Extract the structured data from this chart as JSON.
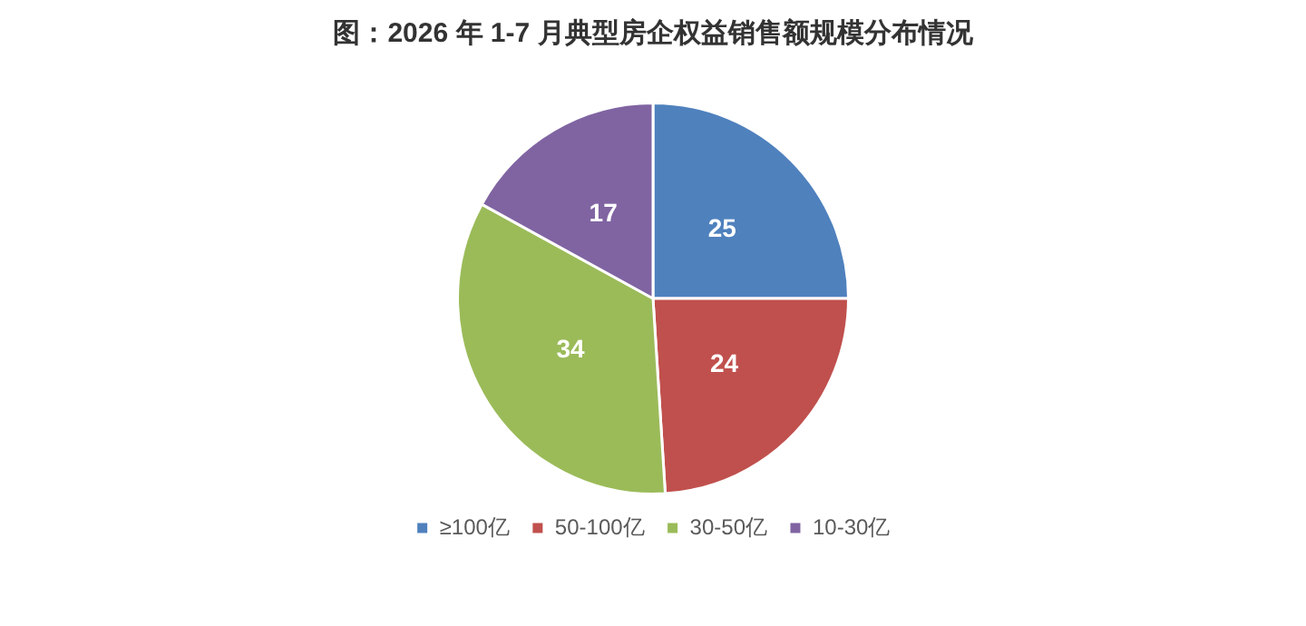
{
  "chart_data": {
    "type": "pie",
    "title": "图：2026 年 1-7 月典型房企权益销售额规模分布情况",
    "categories": [
      "≥100亿",
      "50-100亿",
      "30-50亿",
      "10-30亿"
    ],
    "values": [
      25,
      24,
      34,
      17
    ],
    "colors": [
      "#4f81bd",
      "#c0504d",
      "#9bbb59",
      "#8064a2"
    ],
    "data_labels": true,
    "legend": "bottom"
  }
}
